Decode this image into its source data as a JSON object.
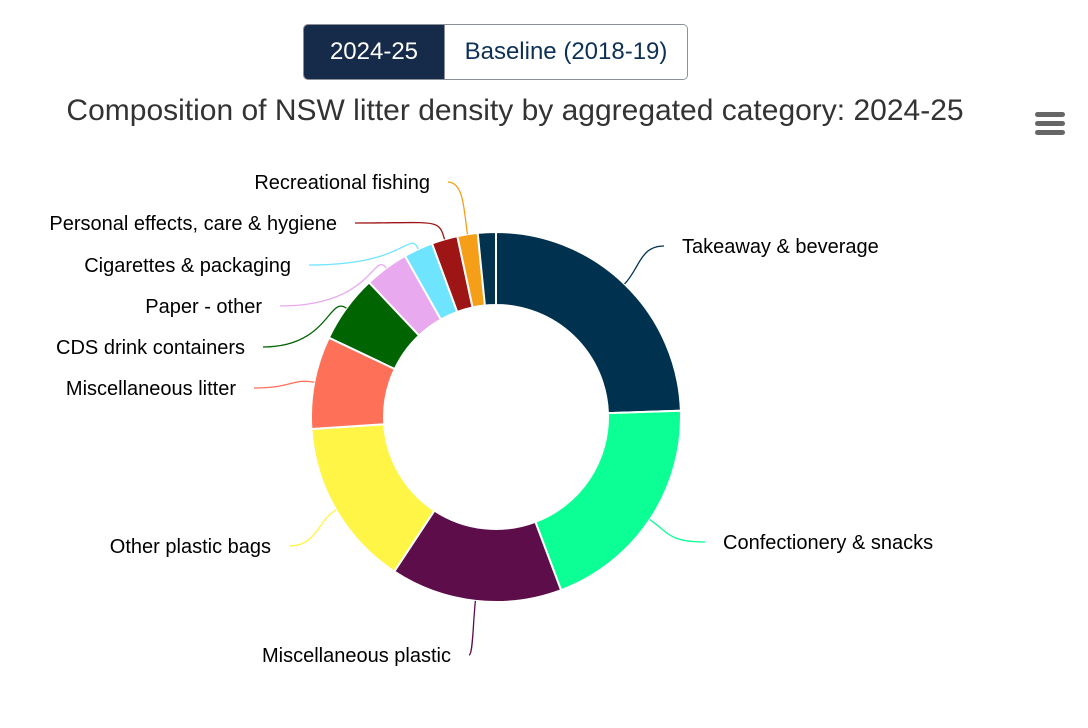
{
  "toggle": {
    "options": [
      "2024-25",
      "Baseline (2018-19)"
    ],
    "selected": "2024-25"
  },
  "menu_icon": "hamburger-menu-icon",
  "chart_data": {
    "type": "pie",
    "title": "Composition of NSW litter density by aggregated category: 2024-25",
    "donut": true,
    "slices": [
      {
        "label": "Takeaway & beverage",
        "value": 24.8,
        "color": "#00314f"
      },
      {
        "label": "Confectionery & snacks",
        "value": 20.1,
        "color": "#0cff94"
      },
      {
        "label": "Miscellaneous plastic",
        "value": 15.2,
        "color": "#5e0d4b"
      },
      {
        "label": "Other plastic bags",
        "value": 14.9,
        "color": "#fff546"
      },
      {
        "label": "Miscellaneous litter",
        "value": 8.2,
        "color": "#ff7059"
      },
      {
        "label": "CDS drink containers",
        "value": 6.0,
        "color": "#006400"
      },
      {
        "label": "Paper - other",
        "value": 3.9,
        "color": "#e8a9ee"
      },
      {
        "label": "Cigarettes & packaging",
        "value": 2.6,
        "color": "#6ee4ff"
      },
      {
        "label": "Personal effects, care & hygiene",
        "value": 2.3,
        "color": "#9e1516"
      },
      {
        "label": "Recreational fishing",
        "value": 1.8,
        "color": "#f59e17"
      },
      {
        "label": "",
        "value": 1.6,
        "color": "#03324e"
      }
    ]
  }
}
